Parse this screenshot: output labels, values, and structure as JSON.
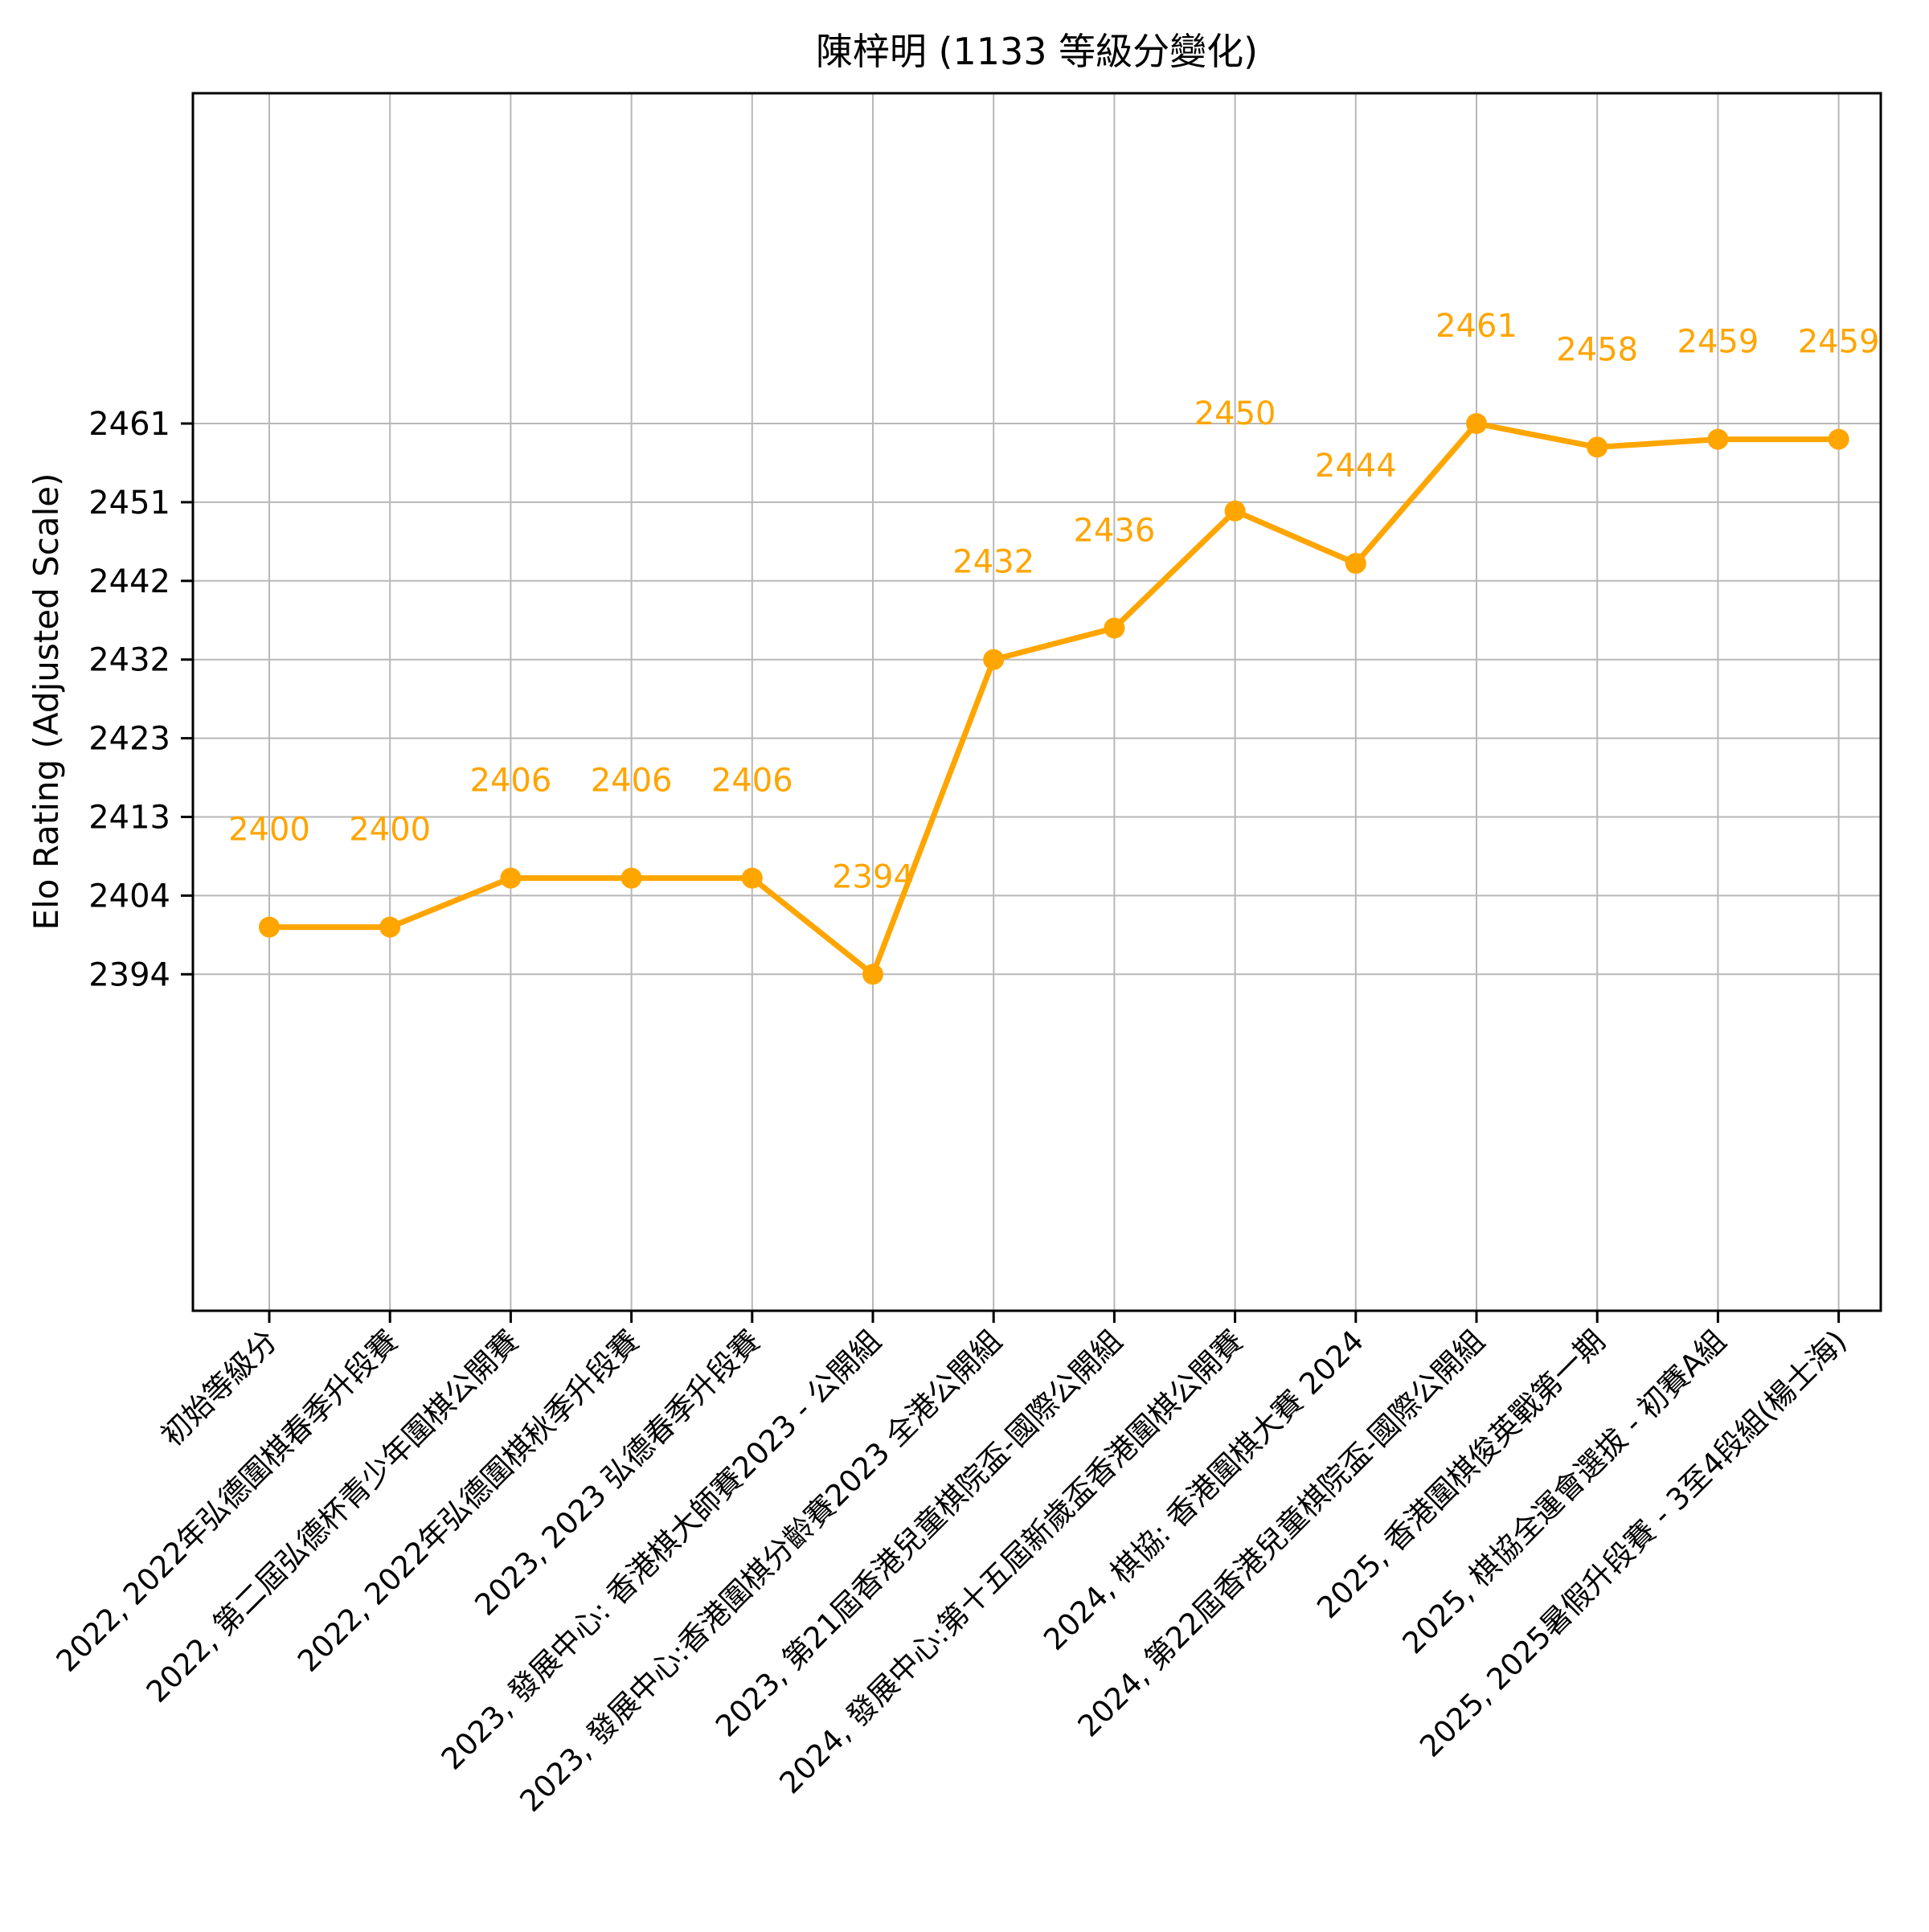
{
  "chart_data": {
    "type": "line",
    "title": "陳梓明 (1133 等級分變化)",
    "ylabel": "Elo Rating (Adjusted Scale)",
    "xlabel": "",
    "categories": [
      "初始等級分",
      "2022, 2022年弘德圍棋春季升段賽",
      "2022, 第二屆弘德杯青少年圍棋公開賽",
      "2022, 2022年弘德圍棋秋季升段賽",
      "2023, 2023 弘德春季升段賽",
      "2023, 發展中心: 香港棋大師賽2023 - 公開組",
      "2023, 發展中心:香港圍棋分齡賽2023 全港公開組",
      "2023, 第21屆香港兒童棋院盃-國際公開組",
      "2024, 發展中心:第十五屆新歲盃香港圍棋公開賽",
      "2024, 棋協: 香港圍棋大賽 2024",
      "2024, 第22屆香港兒童棋院盃-國際公開組",
      "2025, 香港圍棋俊英戰第一期",
      "2025, 棋協全運會選拔 - 初賽A組",
      "2025, 2025暑假升段賽 - 3至4段組(楊士海)"
    ],
    "values": [
      2400,
      2400,
      2406,
      2406,
      2406,
      2394,
      2432,
      2436,
      2450,
      2444,
      2461,
      2458,
      2459,
      2459
    ],
    "point_labels": [
      "2400",
      "2400",
      "2406",
      "2406",
      "2406",
      "2394",
      "2432",
      "2436",
      "2450",
      "2444",
      "2461",
      "2458",
      "2459",
      "2459"
    ],
    "yticks": [
      2394,
      2404,
      2413,
      2423,
      2432,
      2442,
      2451,
      2461
    ],
    "grid": true,
    "legend": "none",
    "scale": "adjusted (y ticks evenly spaced)",
    "line_color": "#FFA500",
    "marker_color": "#FFA500",
    "label_color": "#FFA500",
    "text_color": "#000000",
    "grid_color": "#b8b8b8",
    "frame_color": "#000000"
  }
}
